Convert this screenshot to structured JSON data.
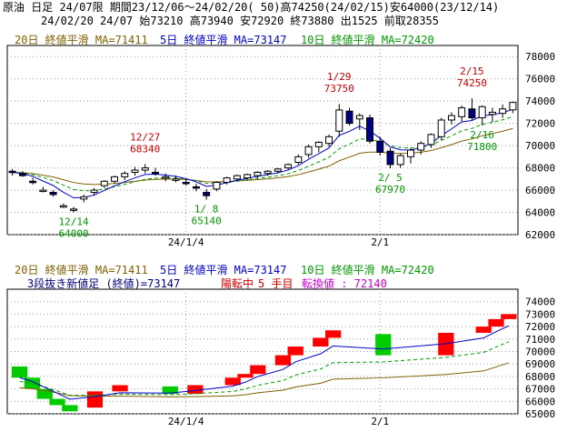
{
  "header": {
    "line1": "原油 日足 24/07限 期間23/12/06～24/02/20( 50)高74250(24/02/15)安64000(23/12/14)",
    "line2": "24/02/20 24/07 始73210 高73940 安72920 終73880 出1525 前取28355"
  },
  "ma_legend": {
    "ma20": "20日 終値平滑 MA=71411",
    "ma5": "5日 終値平滑 MA=73147",
    "ma10": "10日 終値平滑 MA=72420"
  },
  "kagi_legend": {
    "label": "3段抜き新値足 (終値)=73147",
    "status": "陽転中",
    "count": "5 手目",
    "reversal": "転換値 : 72140"
  },
  "colors": {
    "ma5": "#0000cc",
    "ma10": "#009900",
    "ma20": "#806000",
    "up_candle": "#ffffff",
    "down_candle": "#000080",
    "up_brick": "#ff0000",
    "down_brick": "#00cc00",
    "high_label": "#cc0000",
    "low_label": "#009900"
  },
  "chart_data": [
    {
      "type": "candlestick",
      "x_labels": [
        "24/1/4",
        "2/1"
      ],
      "x_label_index": [
        17,
        36
      ],
      "ylim": [
        62000,
        79000
      ],
      "y_ticks": [
        "78000",
        "76000",
        "74000",
        "72000",
        "70000",
        "68000",
        "66000",
        "64000",
        "62000"
      ],
      "candles": [
        {
          "o": 67700,
          "h": 67900,
          "l": 67300,
          "c": 67600
        },
        {
          "o": 67500,
          "h": 67700,
          "l": 67200,
          "c": 67300
        },
        {
          "o": 66800,
          "h": 67100,
          "l": 66500,
          "c": 66700
        },
        {
          "o": 66000,
          "h": 66300,
          "l": 65800,
          "c": 66000
        },
        {
          "o": 65800,
          "h": 66000,
          "l": 65400,
          "c": 65600
        },
        {
          "o": 64600,
          "h": 64800,
          "l": 64400,
          "c": 64600
        },
        {
          "o": 64300,
          "h": 64500,
          "l": 64000,
          "c": 64300
        },
        {
          "o": 65200,
          "h": 65600,
          "l": 64900,
          "c": 65400
        },
        {
          "o": 65800,
          "h": 66200,
          "l": 65500,
          "c": 66000
        },
        {
          "o": 66400,
          "h": 66900,
          "l": 66200,
          "c": 66800
        },
        {
          "o": 66800,
          "h": 67300,
          "l": 66600,
          "c": 67200
        },
        {
          "o": 67200,
          "h": 67700,
          "l": 66900,
          "c": 67500
        },
        {
          "o": 67600,
          "h": 68100,
          "l": 67300,
          "c": 67800
        },
        {
          "o": 67800,
          "h": 68340,
          "l": 67500,
          "c": 68000
        },
        {
          "o": 67600,
          "h": 68000,
          "l": 67300,
          "c": 67500
        },
        {
          "o": 67100,
          "h": 67500,
          "l": 66800,
          "c": 67200
        },
        {
          "o": 67000,
          "h": 67300,
          "l": 66700,
          "c": 67000
        },
        {
          "o": 66700,
          "h": 67000,
          "l": 66400,
          "c": 66600
        },
        {
          "o": 66300,
          "h": 66600,
          "l": 65900,
          "c": 66200
        },
        {
          "o": 65800,
          "h": 66100,
          "l": 65140,
          "c": 65500
        },
        {
          "o": 66100,
          "h": 66800,
          "l": 65900,
          "c": 66700
        },
        {
          "o": 66700,
          "h": 67200,
          "l": 66500,
          "c": 67100
        },
        {
          "o": 67000,
          "h": 67400,
          "l": 66800,
          "c": 67300
        },
        {
          "o": 67100,
          "h": 67500,
          "l": 66900,
          "c": 67400
        },
        {
          "o": 67300,
          "h": 67700,
          "l": 67100,
          "c": 67600
        },
        {
          "o": 67500,
          "h": 67800,
          "l": 67300,
          "c": 67700
        },
        {
          "o": 67700,
          "h": 68000,
          "l": 67500,
          "c": 67900
        },
        {
          "o": 68000,
          "h": 68400,
          "l": 67800,
          "c": 68300
        },
        {
          "o": 68500,
          "h": 69200,
          "l": 68300,
          "c": 69000
        },
        {
          "o": 69200,
          "h": 70100,
          "l": 68900,
          "c": 69900
        },
        {
          "o": 69900,
          "h": 70400,
          "l": 69400,
          "c": 70300
        },
        {
          "o": 70200,
          "h": 71000,
          "l": 69900,
          "c": 70800
        },
        {
          "o": 71300,
          "h": 73750,
          "l": 70800,
          "c": 73200
        },
        {
          "o": 73100,
          "h": 73400,
          "l": 71800,
          "c": 72000
        },
        {
          "o": 72400,
          "h": 72900,
          "l": 71400,
          "c": 72700
        },
        {
          "o": 72500,
          "h": 72800,
          "l": 70200,
          "c": 70400
        },
        {
          "o": 70400,
          "h": 70800,
          "l": 69100,
          "c": 69400
        },
        {
          "o": 69500,
          "h": 69800,
          "l": 67970,
          "c": 68300
        },
        {
          "o": 68300,
          "h": 69300,
          "l": 68000,
          "c": 69100
        },
        {
          "o": 69000,
          "h": 69800,
          "l": 68400,
          "c": 69600
        },
        {
          "o": 69600,
          "h": 70400,
          "l": 69200,
          "c": 70200
        },
        {
          "o": 70100,
          "h": 71100,
          "l": 69800,
          "c": 71000
        },
        {
          "o": 70800,
          "h": 72500,
          "l": 70500,
          "c": 72300
        },
        {
          "o": 72300,
          "h": 73000,
          "l": 71900,
          "c": 72700
        },
        {
          "o": 72600,
          "h": 73600,
          "l": 72200,
          "c": 73400
        },
        {
          "o": 73300,
          "h": 74250,
          "l": 72300,
          "c": 72500
        },
        {
          "o": 72500,
          "h": 73600,
          "l": 71800,
          "c": 73500
        },
        {
          "o": 72800,
          "h": 73400,
          "l": 72100,
          "c": 73000
        },
        {
          "o": 72900,
          "h": 73700,
          "l": 72500,
          "c": 73300
        },
        {
          "o": 73210,
          "h": 73940,
          "l": 72920,
          "c": 73880
        }
      ],
      "annotations": [
        {
          "label": "12/27",
          "value": "68340",
          "kind": "high",
          "idx": 13
        },
        {
          "label": "1/29",
          "value": "73750",
          "kind": "high",
          "idx": 32
        },
        {
          "label": "2/15",
          "value": "74250",
          "kind": "high",
          "idx": 45
        },
        {
          "label": "12/14",
          "value": "64000",
          "kind": "low",
          "idx": 6
        },
        {
          "label": "1/ 8",
          "value": "65140",
          "kind": "low",
          "idx": 19
        },
        {
          "label": "2/ 5",
          "value": "67970",
          "kind": "low",
          "idx": 37
        },
        {
          "label": "2/16",
          "value": "71800",
          "kind": "low",
          "idx": 46
        }
      ]
    },
    {
      "type": "kagi_bricks",
      "x_labels": [
        "24/1/4",
        "2/1"
      ],
      "x_label_index": [
        17,
        36
      ],
      "ylim": [
        65000,
        75000
      ],
      "y_ticks": [
        "74000",
        "73000",
        "72000",
        "71000",
        "70000",
        "69000",
        "68000",
        "67000",
        "66000",
        "65000"
      ],
      "bricks": [
        {
          "dir": "down",
          "from": 68800,
          "to": 67900
        },
        {
          "dir": "down",
          "from": 67900,
          "to": 67000
        },
        {
          "dir": "down",
          "from": 67000,
          "to": 66200
        },
        {
          "dir": "down",
          "from": 66200,
          "to": 65700
        },
        {
          "dir": "down",
          "from": 65700,
          "to": 65200
        },
        {
          "dir": "up",
          "from": 65500,
          "to": 66800
        },
        {
          "dir": "up",
          "from": 66800,
          "to": 67300
        },
        {
          "dir": "down",
          "from": 67200,
          "to": 66600
        },
        {
          "dir": "up",
          "from": 66600,
          "to": 67300
        },
        {
          "dir": "up",
          "from": 67300,
          "to": 67900
        },
        {
          "dir": "up",
          "from": 67900,
          "to": 68200
        },
        {
          "dir": "up",
          "from": 68200,
          "to": 68900
        },
        {
          "dir": "up",
          "from": 68900,
          "to": 69700
        },
        {
          "dir": "up",
          "from": 69700,
          "to": 70400
        },
        {
          "dir": "up",
          "from": 70400,
          "to": 71100
        },
        {
          "dir": "up",
          "from": 71100,
          "to": 71700
        },
        {
          "dir": "down",
          "from": 71400,
          "to": 69700
        },
        {
          "dir": "up",
          "from": 69700,
          "to": 71500
        },
        {
          "dir": "up",
          "from": 71500,
          "to": 72000
        },
        {
          "dir": "up",
          "from": 72000,
          "to": 72600
        },
        {
          "dir": "up",
          "from": 72600,
          "to": 73000
        }
      ],
      "brick_slots": [
        0,
        1,
        2,
        3,
        4,
        6,
        8,
        12,
        14,
        17,
        18,
        19,
        21,
        22,
        24,
        25,
        29,
        34,
        37,
        38,
        39
      ]
    }
  ]
}
